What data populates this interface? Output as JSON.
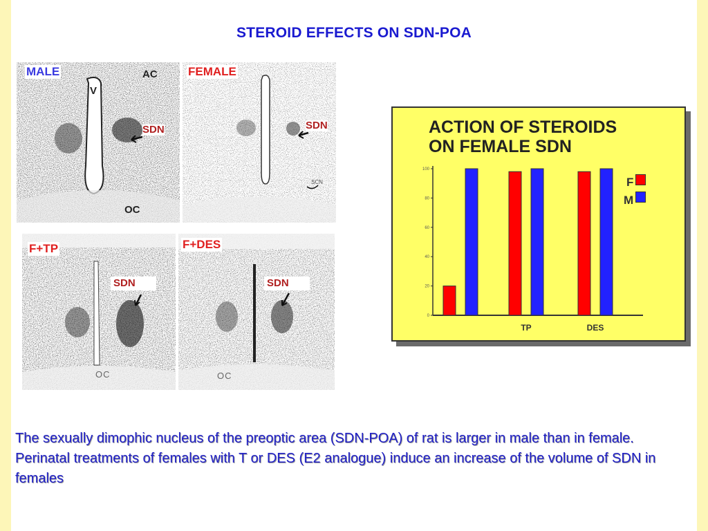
{
  "title": "STEROID EFFECTS ON SDN-POA",
  "panels": {
    "male": {
      "label": "MALE",
      "labels": {
        "v": "V",
        "ac": "AC",
        "sdn": "SDN",
        "oc": "OC"
      }
    },
    "female": {
      "label": "FEMALE",
      "labels": {
        "sdn": "SDN",
        "scn": "SCN"
      }
    },
    "ftp": {
      "label": "F+TP",
      "labels": {
        "sdn": "SDN",
        "oc": "OC"
      }
    },
    "fdes": {
      "label": "F+DES",
      "labels": {
        "sdn": "SDN",
        "oc": "OC"
      }
    }
  },
  "chart_data": {
    "type": "bar",
    "title": "ACTION OF STEROIDS\nON FEMALE SDN",
    "categories": [
      "",
      "TP",
      "DES"
    ],
    "series": [
      {
        "name": "F",
        "color": "#ff0000",
        "values": [
          20,
          98,
          98
        ]
      },
      {
        "name": "M",
        "color": "#2222ff",
        "values": [
          100,
          100,
          100
        ]
      }
    ],
    "ylim": [
      0,
      100
    ],
    "yticks": [
      "0",
      "20",
      "40",
      "60",
      "80",
      "100"
    ],
    "legend": "right"
  },
  "caption": {
    "line1": "The sexually dimophic nucleus of the preoptic area (SDN-POA) of rat is larger in male than in female.",
    "line2": "Perinatal treatments of females with T or DES (E2 analogue) induce an increase of the volume of SDN in females"
  }
}
